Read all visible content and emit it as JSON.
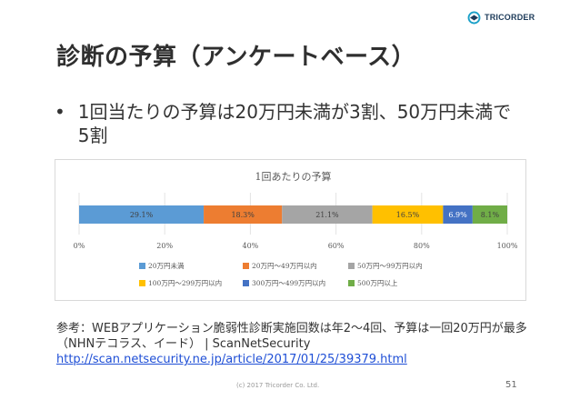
{
  "brand": {
    "name": "TRICORDER"
  },
  "slide": {
    "title": "診断の予算（アンケートベース）",
    "bullet": "1回当たりの予算は20万円未満が3割、50万円未満で5割",
    "reference_line1": "参考：WEBアプリケーション脆弱性診断実施回数は年2〜4回、予算は一回20万円が最多（NHNテコラス、イード） | ScanNetSecurity",
    "reference_url": "http://scan.netsecurity.ne.jp/article/2017/01/25/39379.html",
    "footer": "(c) 2017 Tricorder Co. Ltd.",
    "page_number": "51"
  },
  "chart_data": {
    "type": "bar",
    "orientation": "horizontal",
    "stacked": true,
    "title": "1回あたりの予算",
    "xlim": [
      0,
      100
    ],
    "x_ticks": [
      "0%",
      "20%",
      "40%",
      "60%",
      "80%",
      "100%"
    ],
    "legend_position": "bottom",
    "series": [
      {
        "name": "20万円未満",
        "value": 29.1,
        "label": "29.1%",
        "color": "#5b9bd5"
      },
      {
        "name": "20万円〜49万円以内",
        "value": 18.3,
        "label": "18.3%",
        "color": "#ed7d31"
      },
      {
        "name": "50万円〜99万円以内",
        "value": 21.1,
        "label": "21.1%",
        "color": "#a5a5a5"
      },
      {
        "name": "100万円〜299万円以内",
        "value": 16.5,
        "label": "16.5%",
        "color": "#ffc000"
      },
      {
        "name": "300万円〜499万円以内",
        "value": 6.9,
        "label": "6.9%",
        "color": "#4472c4"
      },
      {
        "name": "500万円以上",
        "value": 8.1,
        "label": "8.1%",
        "color": "#70ad47"
      }
    ]
  }
}
